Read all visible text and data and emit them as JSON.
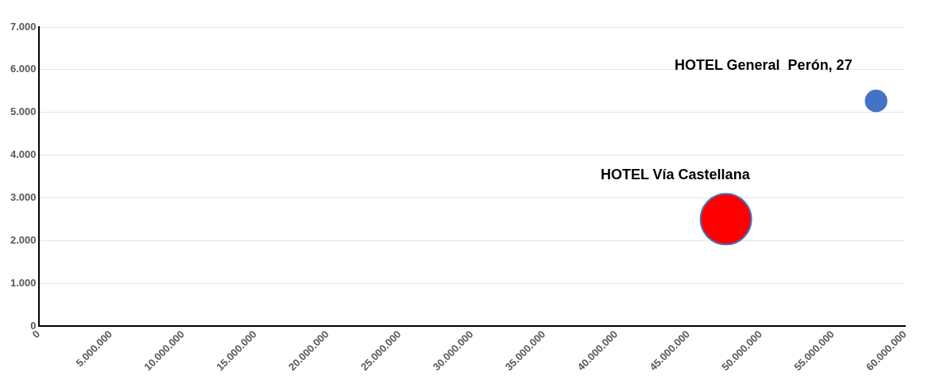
{
  "chart_data": {
    "type": "bubble",
    "grid": "y",
    "legend": false,
    "xlim": [
      0,
      60000000
    ],
    "xticks": [
      0,
      {
        "value": 5000000,
        "label": "5.000.000"
      },
      {
        "value": 10000000,
        "label": "10.000.000"
      },
      {
        "value": 15000000,
        "label": "15.000.000"
      },
      {
        "value": 20000000,
        "label": "20.000.000"
      },
      {
        "value": 25000000,
        "label": "25.000.000"
      },
      {
        "value": 30000000,
        "label": "30.000.000"
      },
      {
        "value": 35000000,
        "label": "35.000.000"
      },
      {
        "value": 40000000,
        "label": "40.000.000"
      },
      {
        "value": 45000000,
        "label": "45.000.000"
      },
      {
        "value": 50000000,
        "label": "50.000.000"
      },
      {
        "value": 55000000,
        "label": "55.000.000"
      },
      {
        "value": 60000000,
        "label": "60.000.000"
      }
    ],
    "ylim": [
      0,
      7000
    ],
    "yticks": [
      0,
      {
        "value": 1000,
        "label": "1.000"
      },
      {
        "value": 2000,
        "label": "2.000"
      },
      {
        "value": 3000,
        "label": "3.000"
      },
      {
        "value": 4000,
        "label": "4.000"
      },
      {
        "value": 5000,
        "label": "5.000"
      },
      {
        "value": 6000,
        "label": "6.000"
      },
      {
        "value": 7000,
        "label": "7.000"
      }
    ],
    "series": [
      {
        "name": "HOTEL General  Perón, 27",
        "color": "#4472c4",
        "x": [
          58000000
        ],
        "values": [
          5270
        ],
        "sizes": [
          0.17
        ]
      },
      {
        "name": "HOTEL Vía Castellana",
        "color": "#ff0000",
        "x": [
          47600000
        ],
        "values": [
          2500
        ],
        "sizes": [
          1
        ]
      }
    ]
  }
}
